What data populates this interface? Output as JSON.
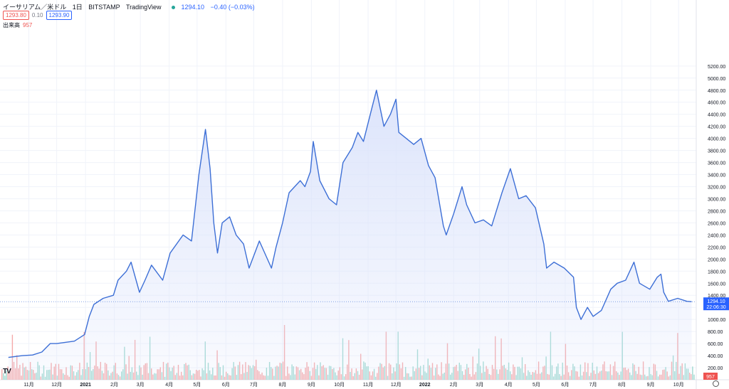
{
  "header": {
    "symbol": "イーサリアム／米ドル",
    "interval": "1日",
    "exchange": "BITSTAMP",
    "source": "TradingView",
    "last": "1294.10",
    "change": "−0.40 (−0.03%)"
  },
  "quotes": {
    "sell": "1293.80",
    "spread": "0.10",
    "buy": "1293.90"
  },
  "volume": {
    "label": "出来高",
    "value": "957"
  },
  "price_tag": {
    "price": "1294.10",
    "countdown": "22:06:30"
  },
  "colors": {
    "line": "#3d6fd6",
    "area": "#dbe3fb",
    "up_volume": "#9fd9d0",
    "down_volume": "#f5a9a9",
    "sell": "#ef5350",
    "buy": "#2962ff"
  },
  "icons": [
    "tradingview-logo-icon",
    "settings-gear-icon"
  ],
  "chart_data": {
    "type": "area",
    "title": "イーサリアム／米ドル",
    "xlabel": "",
    "ylabel": "",
    "ylim": [
      0,
      6200
    ],
    "yticks": [
      200,
      400,
      600,
      800,
      1000,
      1200,
      1400,
      1600,
      1800,
      2000,
      2200,
      2400,
      2600,
      2800,
      3000,
      3200,
      3400,
      3600,
      3800,
      4000,
      4200,
      4400,
      4600,
      4800,
      5000,
      5200
    ],
    "ytick_labels": [
      "200.00",
      "400.00",
      "600.00",
      "800.00",
      "1000.00",
      "1200.00",
      "1400.00",
      "1600.00",
      "1800.00",
      "2000.00",
      "2200.00",
      "2400.00",
      "2600.00",
      "2800.00",
      "3000.00",
      "3200.00",
      "3400.00",
      "3600.00",
      "3800.00",
      "4000.00",
      "4200.00",
      "4400.00",
      "4600.00",
      "4800.00",
      "5000.00",
      "5200.00"
    ],
    "xtick_labels": [
      "11月",
      "12月",
      "2021",
      "2月",
      "3月",
      "4月",
      "5月",
      "6月",
      "7月",
      "8月",
      "9月",
      "10月",
      "11月",
      "12月",
      "2022",
      "2月",
      "3月",
      "4月",
      "5月",
      "6月",
      "7月",
      "8月",
      "9月",
      "10月"
    ],
    "xtick_dates": [
      "2020-11-01",
      "2020-12-01",
      "2021-01-01",
      "2021-02-01",
      "2021-03-01",
      "2021-04-01",
      "2021-05-01",
      "2021-06-01",
      "2021-07-01",
      "2021-08-01",
      "2021-09-01",
      "2021-10-01",
      "2021-11-01",
      "2021-12-01",
      "2022-01-01",
      "2022-02-01",
      "2022-03-01",
      "2022-04-01",
      "2022-05-01",
      "2022-06-01",
      "2022-07-01",
      "2022-08-01",
      "2022-09-01",
      "2022-10-01"
    ],
    "grid": true,
    "series": [
      {
        "values": [
          [
            "2020-10-10",
            370
          ],
          [
            "2020-10-25",
            400
          ],
          [
            "2020-11-05",
            410
          ],
          [
            "2020-11-15",
            460
          ],
          [
            "2020-11-24",
            600
          ],
          [
            "2020-12-01",
            600
          ],
          [
            "2020-12-20",
            640
          ],
          [
            "2020-12-31",
            750
          ],
          [
            "2021-01-05",
            1050
          ],
          [
            "2021-01-10",
            1250
          ],
          [
            "2021-01-20",
            1350
          ],
          [
            "2021-01-31",
            1400
          ],
          [
            "2021-02-05",
            1650
          ],
          [
            "2021-02-14",
            1800
          ],
          [
            "2021-02-19",
            1950
          ],
          [
            "2021-02-28",
            1450
          ],
          [
            "2021-03-06",
            1650
          ],
          [
            "2021-03-13",
            1900
          ],
          [
            "2021-03-25",
            1650
          ],
          [
            "2021-04-02",
            2100
          ],
          [
            "2021-04-16",
            2400
          ],
          [
            "2021-04-25",
            2300
          ],
          [
            "2021-05-03",
            3400
          ],
          [
            "2021-05-10",
            4150
          ],
          [
            "2021-05-15",
            3500
          ],
          [
            "2021-05-19",
            2600
          ],
          [
            "2021-05-23",
            2100
          ],
          [
            "2021-05-28",
            2600
          ],
          [
            "2021-06-05",
            2700
          ],
          [
            "2021-06-12",
            2400
          ],
          [
            "2021-06-20",
            2250
          ],
          [
            "2021-06-26",
            1850
          ],
          [
            "2021-07-07",
            2300
          ],
          [
            "2021-07-20",
            1850
          ],
          [
            "2021-07-25",
            2200
          ],
          [
            "2021-08-01",
            2600
          ],
          [
            "2021-08-08",
            3100
          ],
          [
            "2021-08-14",
            3200
          ],
          [
            "2021-08-20",
            3300
          ],
          [
            "2021-08-25",
            3200
          ],
          [
            "2021-08-31",
            3450
          ],
          [
            "2021-09-03",
            3950
          ],
          [
            "2021-09-10",
            3300
          ],
          [
            "2021-09-20",
            3000
          ],
          [
            "2021-09-28",
            2900
          ],
          [
            "2021-10-05",
            3600
          ],
          [
            "2021-10-15",
            3850
          ],
          [
            "2021-10-21",
            4100
          ],
          [
            "2021-10-27",
            3950
          ],
          [
            "2021-11-05",
            4500
          ],
          [
            "2021-11-10",
            4800
          ],
          [
            "2021-11-18",
            4200
          ],
          [
            "2021-11-25",
            4400
          ],
          [
            "2021-12-01",
            4650
          ],
          [
            "2021-12-04",
            4100
          ],
          [
            "2021-12-12",
            4000
          ],
          [
            "2021-12-20",
            3900
          ],
          [
            "2021-12-28",
            4000
          ],
          [
            "2022-01-05",
            3550
          ],
          [
            "2022-01-12",
            3350
          ],
          [
            "2022-01-21",
            2550
          ],
          [
            "2022-01-24",
            2400
          ],
          [
            "2022-02-01",
            2750
          ],
          [
            "2022-02-10",
            3200
          ],
          [
            "2022-02-15",
            2900
          ],
          [
            "2022-02-24",
            2600
          ],
          [
            "2022-03-05",
            2650
          ],
          [
            "2022-03-14",
            2550
          ],
          [
            "2022-03-25",
            3100
          ],
          [
            "2022-04-03",
            3500
          ],
          [
            "2022-04-12",
            3000
          ],
          [
            "2022-04-20",
            3050
          ],
          [
            "2022-04-30",
            2850
          ],
          [
            "2022-05-09",
            2250
          ],
          [
            "2022-05-12",
            1850
          ],
          [
            "2022-05-20",
            1950
          ],
          [
            "2022-05-31",
            1850
          ],
          [
            "2022-06-10",
            1700
          ],
          [
            "2022-06-13",
            1200
          ],
          [
            "2022-06-18",
            1000
          ],
          [
            "2022-06-25",
            1200
          ],
          [
            "2022-07-01",
            1050
          ],
          [
            "2022-07-10",
            1150
          ],
          [
            "2022-07-20",
            1500
          ],
          [
            "2022-07-27",
            1600
          ],
          [
            "2022-08-05",
            1650
          ],
          [
            "2022-08-14",
            1950
          ],
          [
            "2022-08-20",
            1600
          ],
          [
            "2022-08-31",
            1500
          ],
          [
            "2022-09-08",
            1700
          ],
          [
            "2022-09-12",
            1750
          ],
          [
            "2022-09-15",
            1450
          ],
          [
            "2022-09-20",
            1300
          ],
          [
            "2022-09-30",
            1350
          ],
          [
            "2022-10-10",
            1300
          ],
          [
            "2022-10-15",
            1294.1
          ]
        ]
      }
    ],
    "volume": {
      "shown_value": 957
    },
    "last_price": 1294.1
  }
}
